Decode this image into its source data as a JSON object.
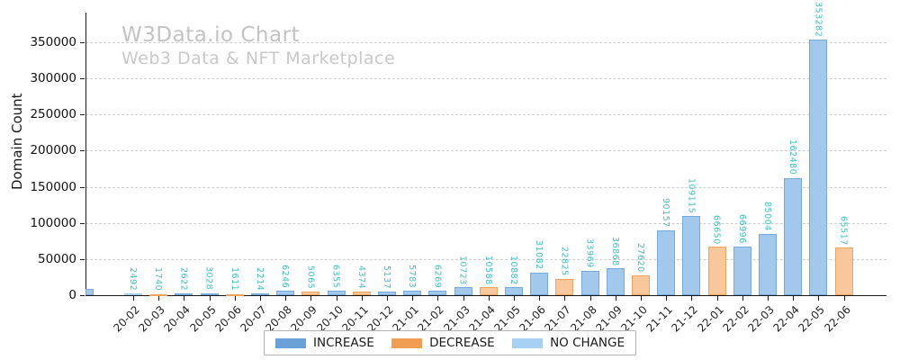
{
  "header": {
    "title": "W3Data.io Chart",
    "subtitle": "Web3 Data & NFT Marketplace"
  },
  "chart_data": {
    "type": "bar",
    "title": "W3Data.io Chart",
    "subtitle": "Web3 Data & NFT Marketplace",
    "xlabel": "",
    "ylabel": "Domain Count",
    "ylim": [
      0,
      396000
    ],
    "yticks": [
      0,
      50000,
      100000,
      150000,
      200000,
      250000,
      300000,
      350000
    ],
    "grid": "horizontal-dashed",
    "legend_position": "bottom-center",
    "categories": [
      "20-02",
      "20-03",
      "20-04",
      "20-05",
      "20-06",
      "20-07",
      "20-08",
      "20-09",
      "20-10",
      "20-11",
      "20-12",
      "21-01",
      "21-02",
      "21-03",
      "21-04",
      "21-05",
      "21-06",
      "21-07",
      "21-08",
      "21-09",
      "21-10",
      "21-11",
      "21-12",
      "22-01",
      "22-02",
      "22-03",
      "22-04",
      "22-05",
      "22-06"
    ],
    "values": [
      2492,
      1740,
      2622,
      3028,
      1611,
      2214,
      6246,
      5065,
      6355,
      4374,
      5137,
      5783,
      6269,
      10723,
      10588,
      10882,
      31082,
      22825,
      33969,
      36868,
      27620,
      90157,
      109115,
      66650,
      66996,
      85004,
      162480,
      353282,
      65517
    ],
    "change_types": [
      "nochange",
      "decrease",
      "increase",
      "increase",
      "decrease",
      "increase",
      "increase",
      "decrease",
      "increase",
      "decrease",
      "increase",
      "increase",
      "increase",
      "increase",
      "decrease",
      "increase",
      "increase",
      "decrease",
      "increase",
      "increase",
      "decrease",
      "increase",
      "increase",
      "decrease",
      "increase",
      "increase",
      "increase",
      "increase",
      "decrease"
    ],
    "bar_label_color": "#3fbfc4",
    "colors": {
      "increase": {
        "fill": "#a2c8ec",
        "edge": "#76a9dd",
        "legend": "#6aa2d8"
      },
      "decrease": {
        "fill": "#f8c79c",
        "edge": "#f0a35f",
        "legend": "#ef9e54"
      },
      "nochange": {
        "fill": "#c3e0f8",
        "edge": "#a5d0f4",
        "legend": "#a6d1f4"
      }
    },
    "legend": [
      {
        "key": "increase",
        "label": "INCREASE"
      },
      {
        "key": "decrease",
        "label": "DECREASE"
      },
      {
        "key": "nochange",
        "label": "NO CHANGE"
      }
    ]
  }
}
